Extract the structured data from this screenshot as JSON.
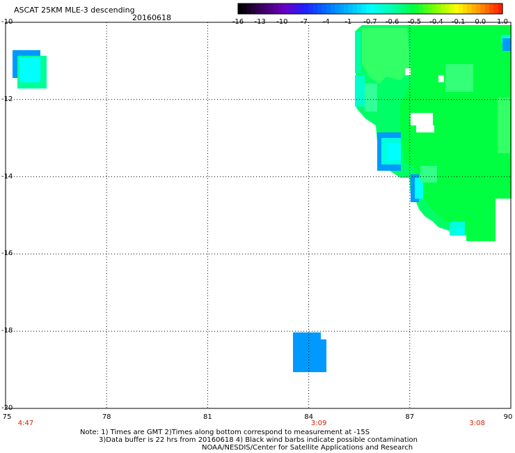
{
  "header": {
    "title": "ASCAT 25KM MLE-3 descending",
    "date": "20160618"
  },
  "colorbar": {
    "labels": [
      "-16",
      "-13",
      "-10",
      "-7",
      "-4",
      "-1",
      "-0.7",
      "-0.6",
      "-0.5",
      "-0.4",
      "-0.1",
      "0.0",
      "1.0"
    ],
    "colors": [
      "#000000",
      "#3a0060",
      "#6a00c0",
      "#2020ff",
      "#0070ff",
      "#00b8ff",
      "#00ffff",
      "#00ffb0",
      "#00ff40",
      "#80ff00",
      "#ffff00",
      "#ff9900",
      "#ff2000"
    ]
  },
  "map": {
    "lon_labels": [
      "75",
      "78",
      "81",
      "84",
      "87",
      "90"
    ],
    "lat_labels": [
      "-10",
      "-12",
      "-14",
      "-16",
      "-18",
      "-20"
    ],
    "time_labels": [
      {
        "lon": 75.6,
        "text": "4:47"
      },
      {
        "lon": 84.3,
        "text": "3:09"
      },
      {
        "lon": 89.0,
        "text": "3:08"
      }
    ]
  },
  "footer": {
    "note1": "Note: 1) Times are GMT 2)Times along bottom correspond to measurement at -15S",
    "note2": "3)Data buffer is 22 hrs from 20160618 4) Black wind barbs indicate possible contamination",
    "credit": "NOAA/NESDIS/Center for Satellite Applications and Research"
  }
}
